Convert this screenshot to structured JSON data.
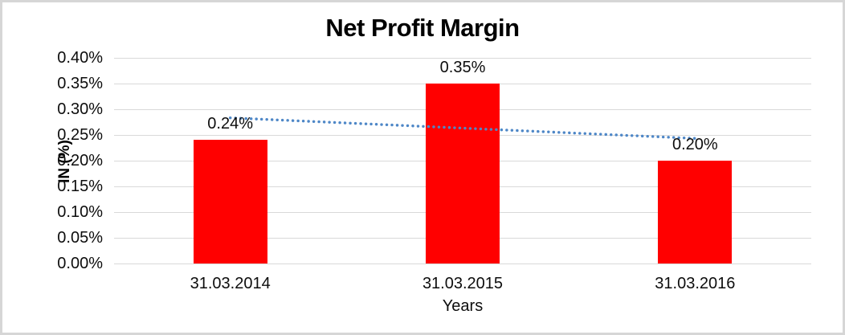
{
  "chart_data": {
    "type": "bar",
    "title": "Net Profit Margin",
    "xlabel": "Years",
    "ylabel": "IN (%)",
    "categories": [
      "31.03.2014",
      "31.03.2015",
      "31.03.2016"
    ],
    "values": [
      0.24,
      0.35,
      0.2
    ],
    "data_labels": [
      "0.24%",
      "0.35%",
      "0.20%"
    ],
    "y_ticks": [
      "0.40%",
      "0.35%",
      "0.30%",
      "0.25%",
      "0.20%",
      "0.15%",
      "0.10%",
      "0.05%",
      "0.00%"
    ],
    "ylim": [
      0,
      0.4
    ],
    "y_tick_step": 0.05,
    "grid": "horizontal",
    "legend": "none",
    "bar_color": "#ff0000",
    "gridline_color": "#d9d9d9",
    "frame_border_color": "#d6d6d6",
    "text_color": "#0d0d0d",
    "trendline": {
      "style": "dotted",
      "color": "#4e87c7",
      "start_value": 0.2833,
      "end_value": 0.2433
    }
  }
}
